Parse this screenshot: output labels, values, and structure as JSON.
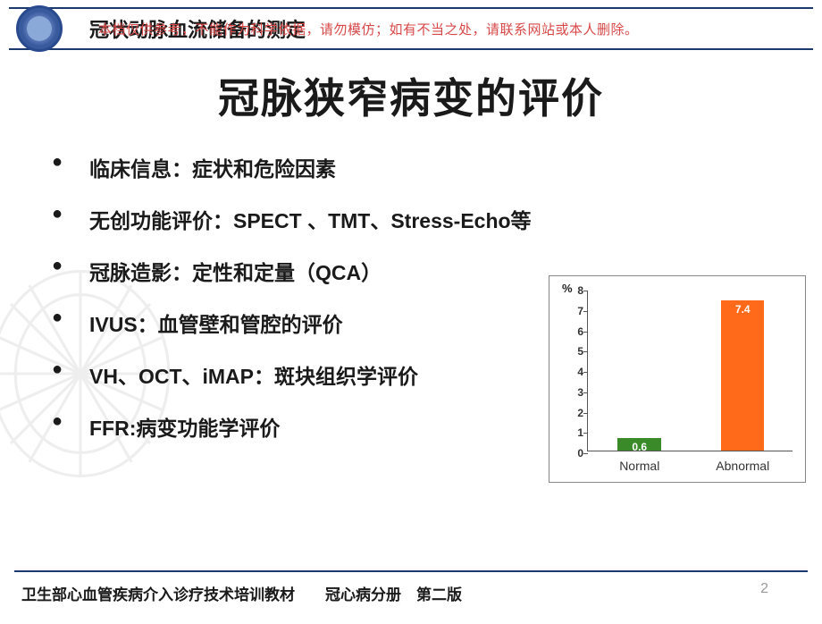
{
  "watermark": "本档仅供参考，不能作为科学依据，请勿模仿；如有不当之处，请联系网站或本人删除。",
  "header_title": "冠状动脉血流储备的测定",
  "main_title": "冠脉狭窄病变的评价",
  "bullets": [
    "临床信息：症状和危险因素",
    "无创功能评价：SPECT 、TMT、Stress-Echo等",
    "冠脉造影：定性和定量（QCA）",
    "IVUS：血管壁和管腔的评价",
    "VH、OCT、iMAP：斑块组织学评价",
    "FFR:病变功能学评价"
  ],
  "chart": {
    "type": "bar",
    "y_unit": "%",
    "ylim": [
      0,
      8
    ],
    "ytick_step": 1,
    "categories": [
      "Normal",
      "Abnormal"
    ],
    "values": [
      0.6,
      7.4
    ],
    "bar_colors": [
      "#3a8a2a",
      "#ff6a1a"
    ],
    "value_labels": [
      "0.6",
      "7.4"
    ],
    "label_color": "#ffffff",
    "axis_color": "#555555",
    "background_color": "#ffffff",
    "bar_width_ratio": 0.42,
    "tick_fontsize": 12,
    "category_fontsize": 14
  },
  "footer": "卫生部心血管疾病介入诊疗技术培训教材　　冠心病分册　第二版",
  "page_number": "2",
  "colors": {
    "rule": "#1a3a6e",
    "text": "#1a1a1a",
    "watermark_text": "#d84848"
  }
}
